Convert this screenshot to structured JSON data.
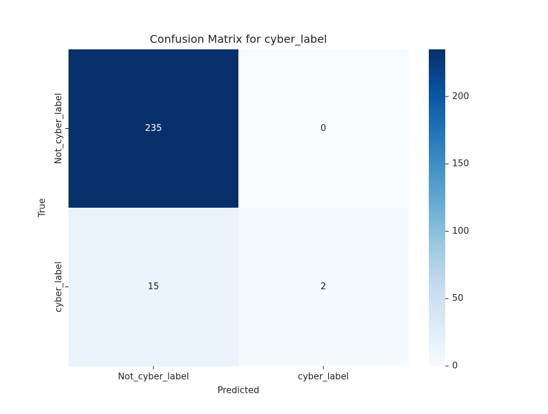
{
  "chart_data": {
    "type": "heatmap",
    "title": "Confusion Matrix for cyber_label",
    "xlabel": "Predicted",
    "ylabel": "True",
    "x_categories": [
      "Not_cyber_label",
      "cyber_label"
    ],
    "y_categories": [
      "Not_cyber_label",
      "cyber_label"
    ],
    "values": [
      [
        235,
        0
      ],
      [
        15,
        2
      ]
    ],
    "cmap": "Blues",
    "colorbar_lim": [
      0,
      235
    ],
    "colorbar_ticks": [
      0,
      50,
      100,
      150,
      200
    ]
  }
}
